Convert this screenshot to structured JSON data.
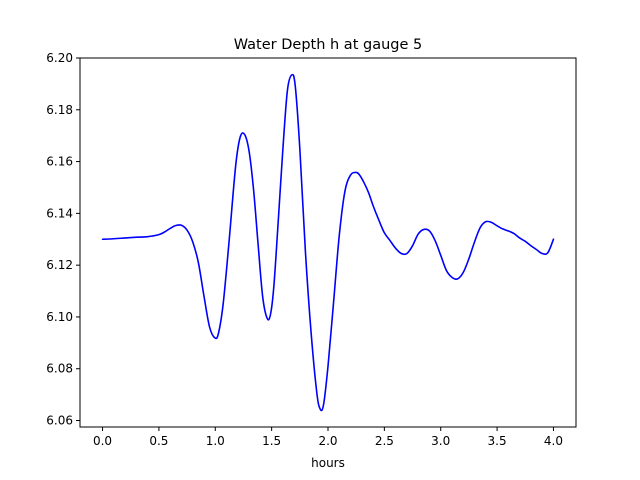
{
  "chart_data": {
    "type": "line",
    "title": "Water Depth h at gauge 5",
    "xlabel": "hours",
    "ylabel": "",
    "xlim": [
      -0.2,
      4.2
    ],
    "ylim": [
      6.0575,
      6.2
    ],
    "xticks": [
      0.0,
      0.5,
      1.0,
      1.5,
      2.0,
      2.5,
      3.0,
      3.5,
      4.0
    ],
    "xtick_labels": [
      "0.0",
      "0.5",
      "1.0",
      "1.5",
      "2.0",
      "2.5",
      "3.0",
      "3.5",
      "4.0"
    ],
    "yticks": [
      6.06,
      6.08,
      6.1,
      6.12,
      6.14,
      6.16,
      6.18,
      6.2
    ],
    "ytick_labels": [
      "6.06",
      "6.08",
      "6.10",
      "6.12",
      "6.14",
      "6.16",
      "6.18",
      "6.20"
    ],
    "grid": false,
    "line_color": "#0000ff",
    "series": [
      {
        "x": [
          0.0,
          0.1,
          0.2,
          0.3,
          0.4,
          0.5,
          0.55,
          0.6,
          0.65,
          0.7,
          0.75,
          0.8,
          0.85,
          0.9,
          0.95,
          1.0,
          1.03,
          1.07,
          1.12,
          1.18,
          1.22,
          1.26,
          1.3,
          1.34,
          1.38,
          1.42,
          1.46,
          1.49,
          1.52,
          1.56,
          1.6,
          1.64,
          1.68,
          1.71,
          1.75,
          1.8,
          1.85,
          1.9,
          1.93,
          1.96,
          2.0,
          2.05,
          2.1,
          2.15,
          2.2,
          2.25,
          2.28,
          2.32,
          2.36,
          2.4,
          2.45,
          2.5,
          2.55,
          2.6,
          2.65,
          2.7,
          2.75,
          2.8,
          2.85,
          2.9,
          2.95,
          3.0,
          3.05,
          3.1,
          3.15,
          3.2,
          3.25,
          3.3,
          3.35,
          3.4,
          3.45,
          3.5,
          3.55,
          3.6,
          3.65,
          3.7,
          3.75,
          3.8,
          3.85,
          3.9,
          3.95,
          4.0
        ],
        "y": [
          6.13,
          6.1302,
          6.1305,
          6.1308,
          6.131,
          6.1318,
          6.1328,
          6.1342,
          6.1353,
          6.1354,
          6.1335,
          6.129,
          6.121,
          6.108,
          6.096,
          6.0918,
          6.094,
          6.105,
          6.128,
          6.158,
          6.1693,
          6.1705,
          6.164,
          6.149,
          6.128,
          6.108,
          6.0995,
          6.101,
          6.112,
          6.138,
          6.165,
          6.1875,
          6.1935,
          6.189,
          6.165,
          6.125,
          6.094,
          6.071,
          6.0645,
          6.066,
          6.081,
          6.106,
          6.1315,
          6.1485,
          6.1548,
          6.1558,
          6.1548,
          6.1518,
          6.148,
          6.143,
          6.1375,
          6.1325,
          6.1295,
          6.1265,
          6.1245,
          6.1245,
          6.1275,
          6.132,
          6.1338,
          6.1332,
          6.1295,
          6.1238,
          6.118,
          6.1153,
          6.1147,
          6.1172,
          6.1225,
          6.129,
          6.1345,
          6.1368,
          6.1365,
          6.1352,
          6.134,
          6.1332,
          6.1322,
          6.1305,
          6.1292,
          6.1275,
          6.126,
          6.1245,
          6.1248,
          6.13
        ]
      }
    ]
  }
}
